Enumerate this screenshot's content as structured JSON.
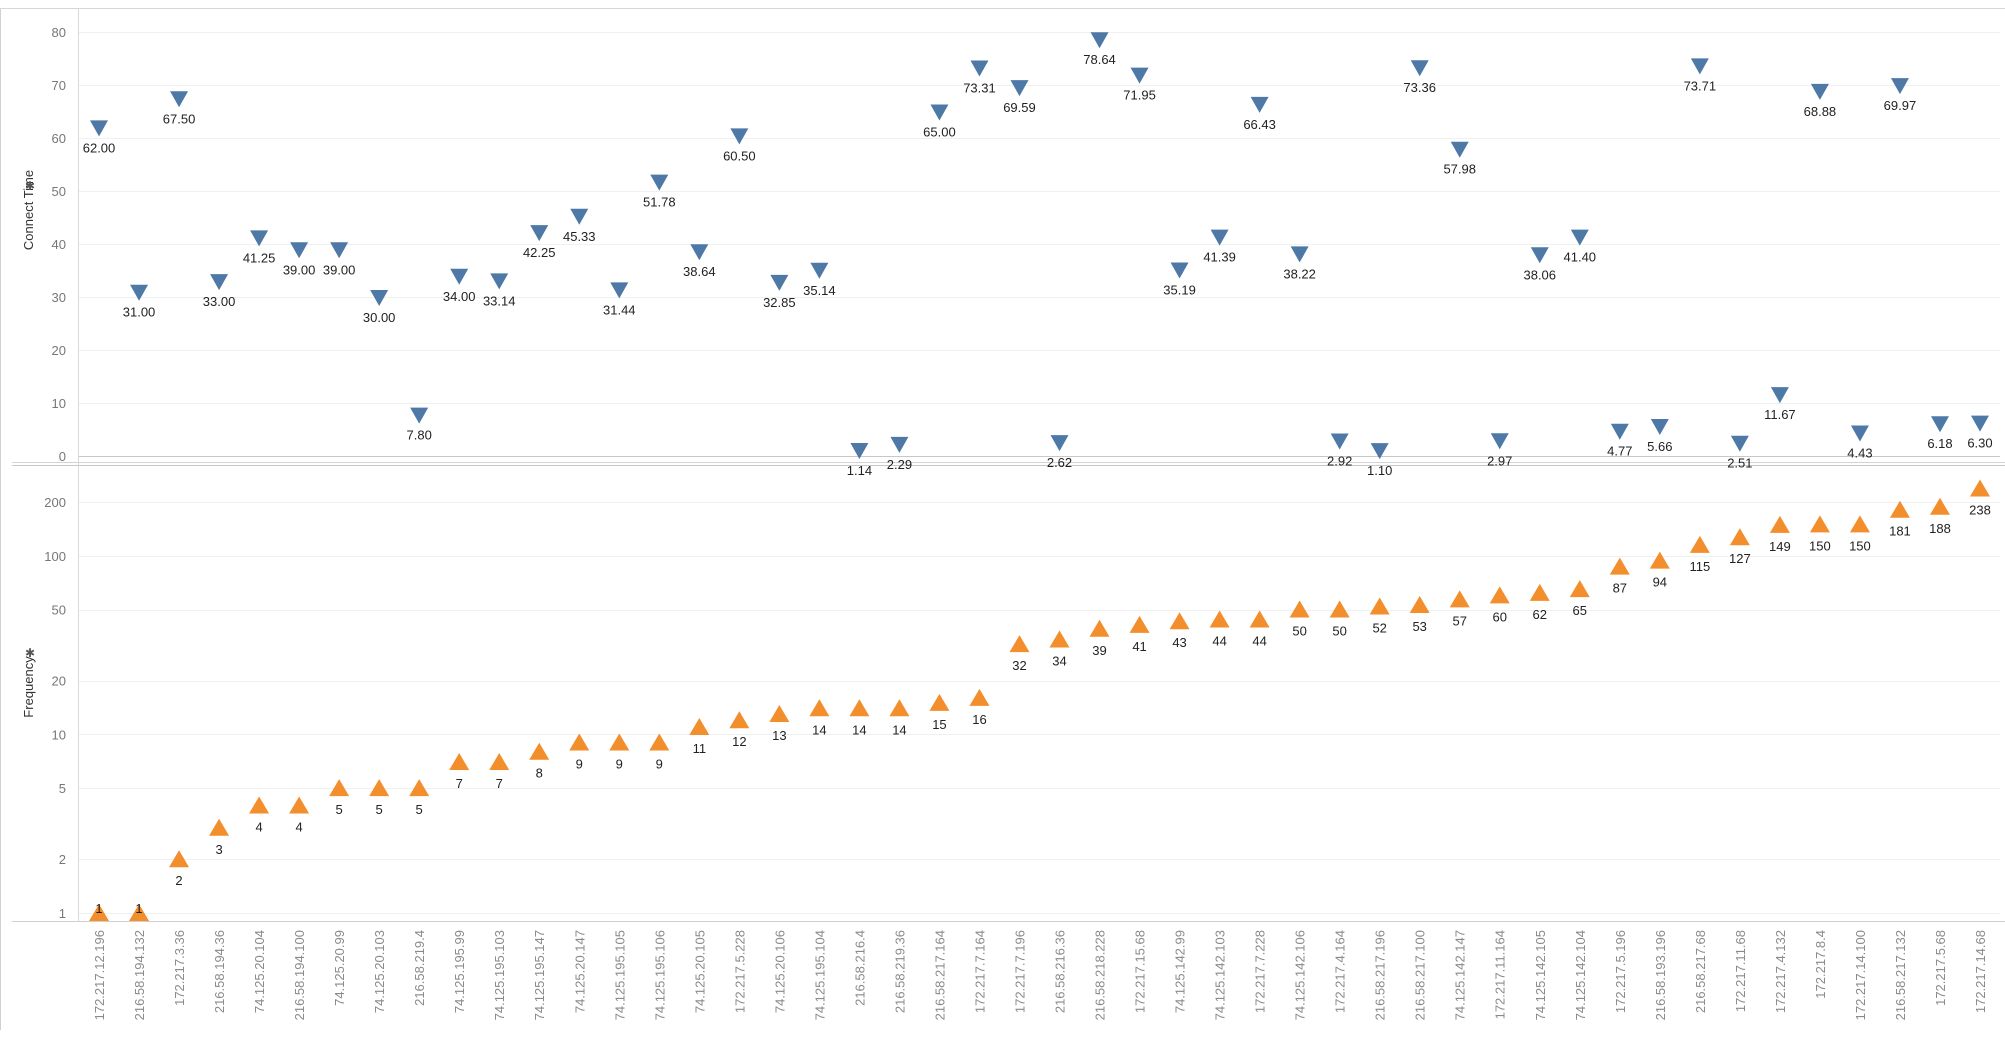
{
  "chart_data": [
    {
      "type": "scatter",
      "ylabel": "Connect Time",
      "ylim": [
        0,
        80
      ],
      "yticks": [
        0,
        10,
        20,
        30,
        40,
        50,
        60,
        70,
        80
      ],
      "yscale": "linear",
      "grid": true,
      "marker": "triangle-down",
      "color": "#4e79a7",
      "categories": [
        "172.217.12.196",
        "216.58.194.132",
        "172.217.3.36",
        "216.58.194.36",
        "74.125.20.104",
        "216.58.194.100",
        "74.125.20.99",
        "74.125.20.103",
        "216.58.219.4",
        "74.125.195.99",
        "74.125.195.103",
        "74.125.195.147",
        "74.125.20.147",
        "74.125.195.105",
        "74.125.195.106",
        "74.125.20.105",
        "172.217.5.228",
        "74.125.20.106",
        "74.125.195.104",
        "216.58.216.4",
        "216.58.219.36",
        "216.58.217.164",
        "172.217.7.164",
        "172.217.7.196",
        "216.58.216.36",
        "216.58.218.228",
        "172.217.15.68",
        "74.125.142.99",
        "74.125.142.103",
        "172.217.7.228",
        "74.125.142.106",
        "172.217.4.164",
        "216.58.217.196",
        "216.58.217.100",
        "74.125.142.147",
        "172.217.11.164",
        "74.125.142.105",
        "74.125.142.104",
        "172.217.5.196",
        "216.58.193.196",
        "216.58.217.68",
        "172.217.11.68",
        "172.217.4.132",
        "172.217.8.4",
        "172.217.14.100",
        "216.58.217.132",
        "172.217.5.68",
        "172.217.14.68"
      ],
      "values": [
        62.0,
        31.0,
        67.5,
        33.0,
        41.25,
        39.0,
        39.0,
        30.0,
        7.8,
        34.0,
        33.14,
        42.25,
        45.33,
        31.44,
        51.78,
        38.64,
        60.5,
        32.85,
        35.14,
        1.14,
        2.29,
        65.0,
        73.31,
        69.59,
        2.62,
        78.64,
        71.95,
        35.19,
        41.39,
        66.43,
        38.22,
        2.92,
        1.1,
        73.36,
        57.98,
        2.97,
        38.06,
        41.4,
        4.77,
        5.66,
        73.71,
        2.51,
        11.67,
        68.88,
        4.43,
        69.97,
        6.18,
        6.3
      ],
      "labels": [
        "62.00",
        "31.00",
        "67.50",
        "33.00",
        "41.25",
        "39.00",
        "39.00",
        "30.00",
        "7.80",
        "34.00",
        "33.14",
        "42.25",
        "45.33",
        "31.44",
        "51.78",
        "38.64",
        "60.50",
        "32.85",
        "35.14",
        "1.14",
        "2.29",
        "65.00",
        "73.31",
        "69.59",
        "2.62",
        "78.64",
        "71.95",
        "35.19",
        "41.39",
        "66.43",
        "38.22",
        "2.92",
        "1.10",
        "73.36",
        "57.98",
        "2.97",
        "38.06",
        "41.40",
        "4.77",
        "5.66",
        "73.71",
        "2.51",
        "11.67",
        "68.88",
        "4.43",
        "69.97",
        "6.18",
        "6.30"
      ]
    },
    {
      "type": "scatter",
      "ylabel": "Frequency",
      "ylim": [
        1,
        300
      ],
      "yticks": [
        1,
        2,
        5,
        10,
        20,
        50,
        100,
        200
      ],
      "yscale": "log",
      "grid": true,
      "marker": "triangle-up",
      "color": "#f28e2b",
      "categories": [
        "172.217.12.196",
        "216.58.194.132",
        "172.217.3.36",
        "216.58.194.36",
        "74.125.20.104",
        "216.58.194.100",
        "74.125.20.99",
        "74.125.20.103",
        "216.58.219.4",
        "74.125.195.99",
        "74.125.195.103",
        "74.125.195.147",
        "74.125.20.147",
        "74.125.195.105",
        "74.125.195.106",
        "74.125.20.105",
        "172.217.5.228",
        "74.125.20.106",
        "74.125.195.104",
        "216.58.216.4",
        "216.58.219.36",
        "216.58.217.164",
        "172.217.7.164",
        "172.217.7.196",
        "216.58.216.36",
        "216.58.218.228",
        "172.217.15.68",
        "74.125.142.99",
        "74.125.142.103",
        "172.217.7.228",
        "74.125.142.106",
        "172.217.4.164",
        "216.58.217.196",
        "216.58.217.100",
        "74.125.142.147",
        "172.217.11.164",
        "74.125.142.105",
        "74.125.142.104",
        "172.217.5.196",
        "216.58.193.196",
        "216.58.217.68",
        "172.217.11.68",
        "172.217.4.132",
        "172.217.8.4",
        "172.217.14.100",
        "216.58.217.132",
        "172.217.5.68",
        "172.217.14.68"
      ],
      "values": [
        1,
        1,
        2,
        3,
        4,
        4,
        5,
        5,
        5,
        7,
        7,
        8,
        9,
        9,
        9,
        11,
        12,
        13,
        14,
        14,
        14,
        15,
        16,
        32,
        34,
        39,
        41,
        43,
        44,
        44,
        50,
        50,
        52,
        53,
        57,
        60,
        62,
        65,
        87,
        94,
        115,
        127,
        149,
        150,
        150,
        181,
        188,
        238
      ],
      "labels": [
        "1",
        "1",
        "2",
        "3",
        "4",
        "4",
        "5",
        "5",
        "5",
        "7",
        "7",
        "8",
        "9",
        "9",
        "9",
        "11",
        "12",
        "13",
        "14",
        "14",
        "14",
        "15",
        "16",
        "32",
        "34",
        "39",
        "41",
        "43",
        "44",
        "44",
        "50",
        "50",
        "52",
        "53",
        "57",
        "60",
        "62",
        "65",
        "87",
        "94",
        "115",
        "127",
        "149",
        "150",
        "150",
        "181",
        "188",
        "238"
      ]
    }
  ]
}
